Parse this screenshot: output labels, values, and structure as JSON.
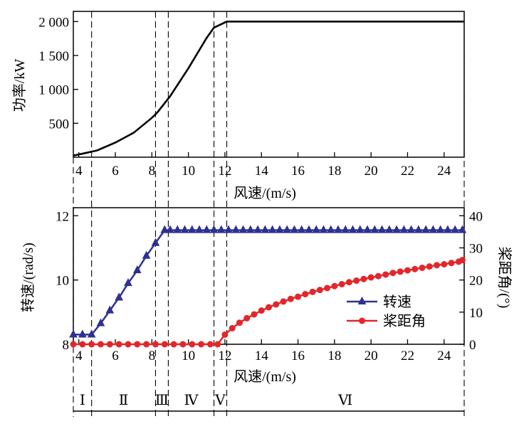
{
  "chart_data": [
    {
      "type": "line",
      "xlabel": "风速/(m/s)",
      "ylabel": "功率/kW",
      "xlim": [
        3.7,
        25.1
      ],
      "ylim": [
        0,
        2150
      ],
      "x_ticks": [
        4,
        6,
        8,
        10,
        12,
        14,
        16,
        18,
        20,
        22,
        24
      ],
      "x_tick_labels": [
        "4",
        "6",
        "8",
        "10",
        "12",
        "14",
        "16",
        "18",
        "20",
        "22",
        "24"
      ],
      "y_ticks": [
        500,
        1000,
        1500,
        2000
      ],
      "y_tick_labels": [
        "500",
        "1 000",
        "1 500",
        "2 000"
      ],
      "grid": false,
      "series": [
        {
          "color": "#000000",
          "x": [
            3.7,
            4,
            5,
            6,
            7,
            8,
            8.3,
            9,
            10,
            11,
            11.4,
            12.1,
            25.1
          ],
          "values": [
            25,
            40,
            100,
            215,
            360,
            580,
            660,
            900,
            1310,
            1760,
            1910,
            2000,
            2000
          ]
        }
      ]
    },
    {
      "type": "line",
      "xlabel": "风速/(m/s)",
      "ylabel": "转速/(rad/s)",
      "ylabel_right": "桨距角/(°)",
      "xlim": [
        3.7,
        25.1
      ],
      "ylim": [
        8,
        12.25
      ],
      "ylim_right": [
        0,
        42.5
      ],
      "x_ticks": [
        4,
        6,
        8,
        10,
        12,
        14,
        16,
        18,
        20,
        22,
        24
      ],
      "x_tick_labels": [
        "4",
        "6",
        "8",
        "10",
        "12",
        "14",
        "16",
        "18",
        "20",
        "22",
        "24"
      ],
      "y_ticks": [
        8,
        10,
        12
      ],
      "y_tick_labels": [
        "8",
        "10",
        "12"
      ],
      "y_ticks_right": [
        0,
        10,
        20,
        30,
        40
      ],
      "y_tick_labels_right": [
        "0",
        "10",
        "20",
        "30",
        "40"
      ],
      "legend": "center-right",
      "grid": false,
      "series": [
        {
          "name": "转速",
          "axis": "left",
          "color": "#2e3192",
          "marker": "triangle",
          "x": [
            3.7,
            4.2,
            4.7,
            5.2,
            5.7,
            6.2,
            6.7,
            7.2,
            7.7,
            8.2,
            8.7,
            9.0,
            9.4,
            9.8,
            10.2,
            10.6,
            11.0,
            11.4,
            11.8,
            12.2,
            12.6,
            13.0,
            13.4,
            13.8,
            14.2,
            14.6,
            15.0,
            15.4,
            15.8,
            16.2,
            16.6,
            17.0,
            17.4,
            17.8,
            18.2,
            18.6,
            19.0,
            19.4,
            19.8,
            20.2,
            20.6,
            21.0,
            21.4,
            21.8,
            22.2,
            22.6,
            23.0,
            23.4,
            23.8,
            24.2,
            24.6,
            25.0
          ],
          "values": [
            8.3,
            8.3,
            8.3,
            8.65,
            9.05,
            9.45,
            9.9,
            10.3,
            10.75,
            11.15,
            11.55,
            11.55,
            11.55,
            11.55,
            11.55,
            11.55,
            11.55,
            11.55,
            11.55,
            11.55,
            11.55,
            11.55,
            11.55,
            11.55,
            11.55,
            11.55,
            11.55,
            11.55,
            11.55,
            11.55,
            11.55,
            11.55,
            11.55,
            11.55,
            11.55,
            11.55,
            11.55,
            11.55,
            11.55,
            11.55,
            11.55,
            11.55,
            11.55,
            11.55,
            11.55,
            11.55,
            11.55,
            11.55,
            11.55,
            11.55,
            11.55,
            11.55
          ]
        },
        {
          "name": "桨距角",
          "axis": "right",
          "color": "#e3262b",
          "marker": "circle",
          "x": [
            3.7,
            4.2,
            4.7,
            5.2,
            5.7,
            6.2,
            6.7,
            7.2,
            7.7,
            8.2,
            8.7,
            9.2,
            9.7,
            10.2,
            10.7,
            11.2,
            11.6,
            12.0,
            12.4,
            12.8,
            13.2,
            13.6,
            14.0,
            14.4,
            14.8,
            15.2,
            15.6,
            16.0,
            16.4,
            16.8,
            17.2,
            17.6,
            18.0,
            18.4,
            18.8,
            19.2,
            19.6,
            20.0,
            20.4,
            20.8,
            21.2,
            21.6,
            22.0,
            22.4,
            22.8,
            23.2,
            23.6,
            24.0,
            24.4,
            24.8,
            25.0
          ],
          "values": [
            0,
            0,
            0,
            0,
            0,
            0,
            0,
            0,
            0,
            0,
            0,
            0,
            0,
            0,
            0,
            0,
            0,
            3.0,
            5.0,
            6.7,
            8.1,
            9.3,
            10.5,
            11.5,
            12.4,
            13.3,
            14.1,
            14.8,
            15.6,
            16.3,
            16.9,
            17.5,
            18.1,
            18.7,
            19.3,
            19.8,
            20.3,
            20.8,
            21.2,
            21.7,
            22.2,
            22.6,
            23.0,
            23.4,
            23.8,
            24.2,
            24.6,
            24.9,
            25.3,
            25.7,
            26.2
          ]
        }
      ]
    }
  ],
  "dividers_x": [
    4.7,
    8.2,
    8.9,
    11.4,
    12.1,
    25.1
  ],
  "regions": [
    "Ⅰ",
    "Ⅱ",
    "Ⅲ",
    "Ⅳ",
    "Ⅴ",
    "Ⅵ"
  ],
  "region_centers_x": [
    4.2,
    6.45,
    8.55,
    10.15,
    11.75,
    18.6
  ]
}
